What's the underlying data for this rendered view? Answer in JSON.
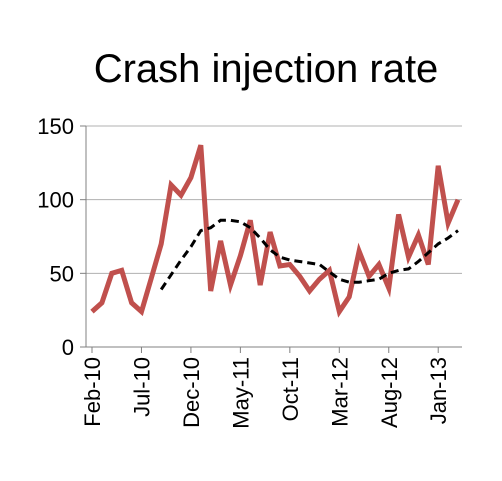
{
  "chart_data": {
    "type": "line",
    "title": "Crash injection rate",
    "xlabel": "",
    "ylabel": "",
    "ylim": [
      0,
      150
    ],
    "yticks": [
      0,
      50,
      100,
      150
    ],
    "x_tick_labels": [
      "Feb-10",
      "Jul-10",
      "Dec-10",
      "May-11",
      "Oct-11",
      "Mar-12",
      "Aug-12",
      "Jan-13"
    ],
    "x_tick_every": 5,
    "grid": "horizontal",
    "legend": "none",
    "colors": {
      "series": "#C0504D",
      "trend": "#000000",
      "grid": "#b0b0b0",
      "axis": "#808080"
    },
    "x": [
      "Feb-10",
      "Mar-10",
      "Apr-10",
      "May-10",
      "Jun-10",
      "Jul-10",
      "Aug-10",
      "Sep-10",
      "Oct-10",
      "Nov-10",
      "Dec-10",
      "Jan-11",
      "Feb-11",
      "Mar-11",
      "Apr-11",
      "May-11",
      "Jun-11",
      "Jul-11",
      "Aug-11",
      "Sep-11",
      "Oct-11",
      "Nov-11",
      "Dec-11",
      "Jan-12",
      "Feb-12",
      "Mar-12",
      "Apr-12",
      "May-12",
      "Jun-12",
      "Jul-12",
      "Aug-12",
      "Sep-12",
      "Oct-12",
      "Nov-12",
      "Dec-12",
      "Jan-13",
      "Feb-13",
      "Mar-13"
    ],
    "series": [
      {
        "style": "solid",
        "values": [
          24,
          30,
          50,
          52,
          30,
          24,
          47,
          70,
          110,
          103,
          115,
          137,
          38,
          72,
          42,
          62,
          86,
          42,
          78,
          55,
          56,
          48,
          38,
          46,
          52,
          24,
          34,
          65,
          48,
          56,
          40,
          90,
          61,
          76,
          56,
          123,
          84,
          100
        ]
      },
      {
        "style": "dashed",
        "values": [
          null,
          null,
          null,
          null,
          null,
          null,
          null,
          39,
          49,
          59,
          68,
          79,
          81,
          86,
          86,
          85,
          81,
          74,
          66,
          61,
          59,
          58,
          57,
          56,
          51,
          46,
          44,
          44,
          45,
          46,
          50,
          52,
          53,
          58,
          64,
          70,
          74,
          79
        ]
      }
    ]
  }
}
